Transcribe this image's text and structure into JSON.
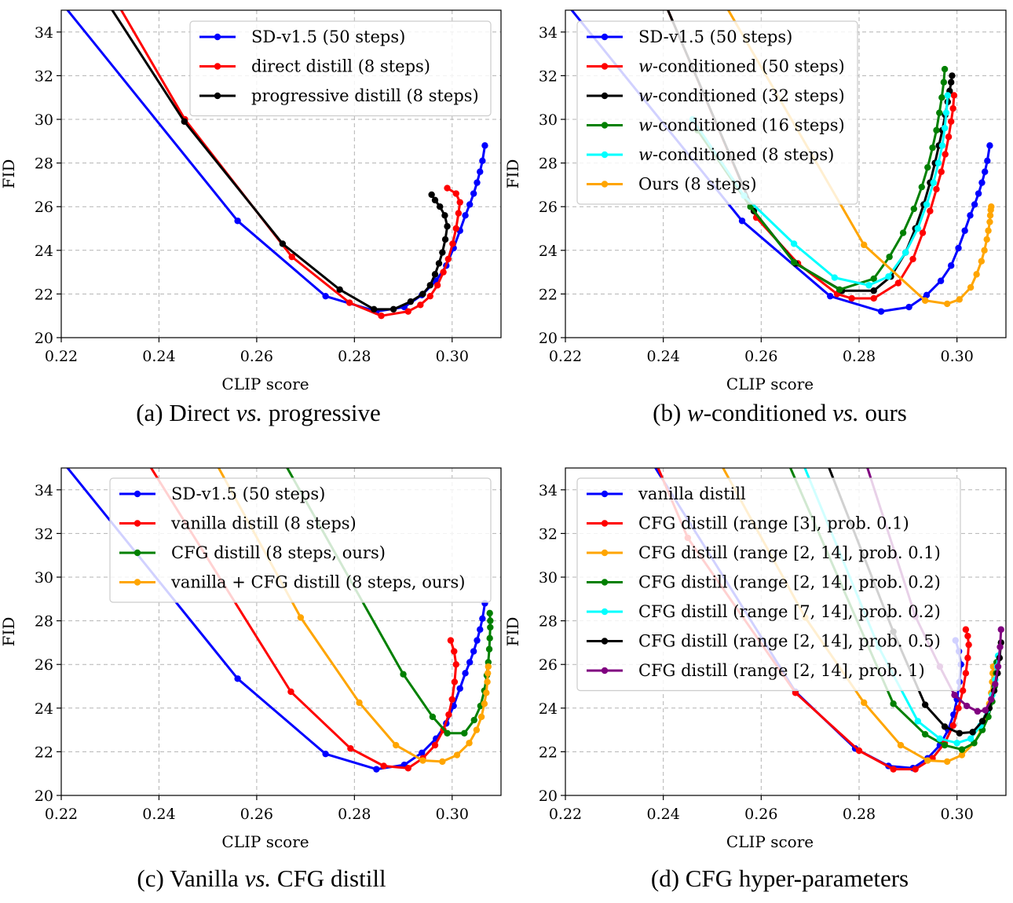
{
  "chart_data": [
    {
      "type": "line",
      "caption": {
        "prefix": "(a) Direct ",
        "em": "vs.",
        "suffix": " progressive"
      },
      "xlabel": "CLIP score",
      "ylabel": "FID",
      "xlim": [
        0.22,
        0.31
      ],
      "ylim": [
        20,
        35
      ],
      "xticks": [
        "0.22",
        "0.24",
        "0.26",
        "0.28",
        "0.30"
      ],
      "yticks": [
        "20",
        "22",
        "24",
        "26",
        "28",
        "30",
        "32",
        "34"
      ],
      "grid": true,
      "legend": "top-right",
      "series": [
        {
          "name": "SD-v1.5 (50 steps)",
          "color": "#0000ff",
          "x": [
            0.2195,
            0.2561,
            0.2741,
            0.2845,
            0.2902,
            0.2938,
            0.2967,
            0.2988,
            0.3003,
            0.3016,
            0.3027,
            0.3036,
            0.3044,
            0.3051,
            0.3057,
            0.3062,
            0.3067
          ],
          "y": [
            35.5,
            25.35,
            21.9,
            21.2,
            21.4,
            21.95,
            22.6,
            23.3,
            24.1,
            24.9,
            25.6,
            26.1,
            26.6,
            27.1,
            27.6,
            28.1,
            28.8
          ]
        },
        {
          "name": "direct distill (8 steps)",
          "color": "#ff0000",
          "x": [
            0.231,
            0.2453,
            0.2672,
            0.279,
            0.2855,
            0.291,
            0.2935,
            0.2955,
            0.297,
            0.2982,
            0.2992,
            0.3001,
            0.3008,
            0.3013,
            0.3016,
            0.3008,
            0.299
          ],
          "y": [
            35.5,
            30.0,
            23.7,
            21.6,
            21.0,
            21.2,
            21.5,
            21.9,
            22.4,
            23.0,
            23.6,
            24.3,
            25.0,
            25.7,
            26.2,
            26.6,
            26.85
          ]
        },
        {
          "name": "progressive distill (8 steps)",
          "color": "#000000",
          "x": [
            0.229,
            0.2452,
            0.2653,
            0.277,
            0.284,
            0.288,
            0.2915,
            0.294,
            0.2955,
            0.2965,
            0.2973,
            0.298,
            0.2986,
            0.299,
            0.2985,
            0.2975,
            0.2965,
            0.2958
          ],
          "y": [
            35.5,
            29.9,
            24.3,
            22.2,
            21.3,
            21.3,
            21.65,
            22.0,
            22.4,
            22.9,
            23.4,
            23.9,
            24.5,
            25.1,
            25.6,
            26.0,
            26.3,
            26.55
          ]
        }
      ]
    },
    {
      "type": "line",
      "caption": {
        "prefix": "(b) ",
        "em": "w",
        "mid": "-conditioned ",
        "em2": "vs.",
        "suffix": " ours"
      },
      "xlabel": "CLIP score",
      "ylabel": "FID",
      "xlim": [
        0.22,
        0.31
      ],
      "ylim": [
        20,
        35
      ],
      "xticks": [
        "0.22",
        "0.24",
        "0.26",
        "0.28",
        "0.30"
      ],
      "yticks": [
        "20",
        "22",
        "24",
        "26",
        "28",
        "30",
        "32",
        "34"
      ],
      "grid": true,
      "legend": "top-left",
      "series": [
        {
          "name": "SD-v1.5 (50 steps)",
          "color": "#0000ff",
          "x": [
            0.2195,
            0.2561,
            0.2741,
            0.2845,
            0.2902,
            0.2938,
            0.2967,
            0.2988,
            0.3003,
            0.3016,
            0.3027,
            0.3036,
            0.3044,
            0.3051,
            0.3057,
            0.3062,
            0.3067
          ],
          "y": [
            35.5,
            25.35,
            21.9,
            21.2,
            21.4,
            21.95,
            22.6,
            23.3,
            24.1,
            24.9,
            25.6,
            26.1,
            26.6,
            27.1,
            27.6,
            28.1,
            28.8
          ]
        },
        {
          "name": "w-conditioned (50 steps)",
          "label_prefix": "",
          "label_em": "w",
          "label_suffix": "-conditioned (50 steps)",
          "color": "#ff0000",
          "x": [
            0.24,
            0.259,
            0.2675,
            0.2755,
            0.2785,
            0.283,
            0.288,
            0.291,
            0.293,
            0.2945,
            0.2958,
            0.2968,
            0.2976,
            0.2983,
            0.2988,
            0.2992,
            0.2994
          ],
          "y": [
            35.5,
            25.5,
            23.4,
            22.0,
            21.8,
            21.8,
            22.5,
            23.6,
            24.8,
            25.8,
            26.8,
            27.6,
            28.4,
            29.2,
            29.9,
            30.5,
            31.1
          ]
        },
        {
          "name": "w-conditioned (32 steps)",
          "label_em": "w",
          "label_suffix": "-conditioned (32 steps)",
          "color": "#000000",
          "x": [
            0.24,
            0.2585,
            0.267,
            0.2765,
            0.283,
            0.2865,
            0.2895,
            0.2915,
            0.2932,
            0.2945,
            0.2955,
            0.2963,
            0.297,
            0.2976,
            0.2981,
            0.2985,
            0.2988,
            0.299
          ],
          "y": [
            35.5,
            25.8,
            23.4,
            22.15,
            22.15,
            22.8,
            23.9,
            25.0,
            26.1,
            27.1,
            28.0,
            28.8,
            29.5,
            30.2,
            30.8,
            31.3,
            31.7,
            32.0
          ]
        },
        {
          "name": "w-conditioned (16 steps)",
          "label_em": "w",
          "label_suffix": "-conditioned (16 steps)",
          "color": "#008000",
          "x": [
            0.247,
            0.2578,
            0.2667,
            0.276,
            0.283,
            0.2862,
            0.289,
            0.2912,
            0.2928,
            0.294,
            0.295,
            0.2958,
            0.2964,
            0.2969,
            0.2973,
            0.2975
          ],
          "y": [
            29.5,
            26.0,
            23.45,
            22.2,
            22.7,
            23.7,
            24.8,
            25.9,
            26.9,
            27.8,
            28.7,
            29.5,
            30.3,
            31.0,
            31.7,
            32.3
          ]
        },
        {
          "name": "w-conditioned (8 steps)",
          "label_em": "w",
          "label_suffix": "-conditioned (8 steps)",
          "color": "#00ffff",
          "x": [
            0.246,
            0.2565,
            0.2667,
            0.275,
            0.282,
            0.286,
            0.2895,
            0.292,
            0.2938,
            0.2952,
            0.2962,
            0.297,
            0.2975,
            0.2978,
            0.2981
          ],
          "y": [
            30.0,
            26.5,
            24.3,
            22.75,
            22.4,
            22.8,
            23.9,
            25.0,
            26.1,
            27.1,
            28.0,
            28.8,
            29.6,
            30.3,
            31.1
          ]
        },
        {
          "name": "Ours (8 steps)",
          "color": "#ffa500",
          "x": [
            0.252,
            0.281,
            0.2935,
            0.298,
            0.3005,
            0.3028,
            0.304,
            0.305,
            0.3056,
            0.3061,
            0.3064,
            0.3067,
            0.3068,
            0.3069,
            0.307
          ],
          "y": [
            35.5,
            24.25,
            21.7,
            21.55,
            21.75,
            22.3,
            22.9,
            23.5,
            24.0,
            24.5,
            24.9,
            25.3,
            25.6,
            25.85,
            26.0
          ]
        }
      ]
    },
    {
      "type": "line",
      "caption": {
        "prefix": "(c) Vanilla ",
        "em": "vs.",
        "suffix": " CFG distill"
      },
      "xlabel": "CLIP score",
      "ylabel": "FID",
      "xlim": [
        0.22,
        0.31
      ],
      "ylim": [
        20,
        35
      ],
      "xticks": [
        "0.22",
        "0.24",
        "0.26",
        "0.28",
        "0.30"
      ],
      "yticks": [
        "20",
        "22",
        "24",
        "26",
        "28",
        "30",
        "32",
        "34"
      ],
      "grid": true,
      "legend": "top-right",
      "series": [
        {
          "name": "SD-v1.5 (50 steps)",
          "color": "#0000ff",
          "x": [
            0.2195,
            0.2561,
            0.2741,
            0.2845,
            0.2902,
            0.2938,
            0.2967,
            0.2988,
            0.3003,
            0.3016,
            0.3027,
            0.3036,
            0.3044,
            0.3051,
            0.3057,
            0.3062,
            0.3067
          ],
          "y": [
            35.5,
            25.35,
            21.9,
            21.2,
            21.4,
            21.95,
            22.6,
            23.3,
            24.1,
            24.9,
            25.6,
            26.1,
            26.6,
            27.1,
            27.6,
            28.1,
            28.8
          ]
        },
        {
          "name": "vanilla distill (8 steps)",
          "color": "#ff0000",
          "x": [
            0.237,
            0.267,
            0.2792,
            0.286,
            0.291,
            0.294,
            0.2965,
            0.2982,
            0.2993,
            0.3,
            0.3005,
            0.3008,
            0.3004,
            0.2997
          ],
          "y": [
            35.5,
            24.75,
            22.15,
            21.35,
            21.25,
            21.7,
            22.3,
            23.0,
            23.7,
            24.4,
            25.2,
            26.0,
            26.6,
            27.1
          ]
        },
        {
          "name": "CFG distill (8 steps, ours)",
          "color": "#008000",
          "x": [
            0.265,
            0.29,
            0.296,
            0.299,
            0.3025,
            0.3045,
            0.3058,
            0.3066,
            0.3071,
            0.3074,
            0.3076,
            0.3077,
            0.3078,
            0.3078,
            0.3077
          ],
          "y": [
            35.5,
            25.55,
            23.6,
            22.85,
            22.85,
            23.45,
            24.1,
            24.8,
            25.5,
            26.1,
            26.7,
            27.2,
            27.7,
            28.0,
            28.35
          ]
        },
        {
          "name": "vanilla + CFG distill (8 steps, ours)",
          "color": "#ffa500",
          "x": [
            0.251,
            0.269,
            0.281,
            0.2885,
            0.294,
            0.298,
            0.301,
            0.3035,
            0.305,
            0.306,
            0.3066,
            0.307,
            0.3072,
            0.3073,
            0.3074
          ],
          "y": [
            35.5,
            28.15,
            24.25,
            22.3,
            21.6,
            21.55,
            21.85,
            22.4,
            23.0,
            23.6,
            24.2,
            24.7,
            25.2,
            25.6,
            25.9
          ]
        }
      ]
    },
    {
      "type": "line",
      "caption": {
        "prefix": "(d) CFG hyper-parameters",
        "em": "",
        "suffix": ""
      },
      "xlabel": "CLIP score",
      "ylabel": "FID",
      "xlim": [
        0.22,
        0.31
      ],
      "ylim": [
        20,
        35
      ],
      "xticks": [
        "0.22",
        "0.24",
        "0.26",
        "0.28",
        "0.30"
      ],
      "yticks": [
        "20",
        "22",
        "24",
        "26",
        "28",
        "30",
        "32",
        "34"
      ],
      "grid": true,
      "legend": "top-left",
      "series": [
        {
          "name": "vanilla distill",
          "color": "#0000ff",
          "x": [
            0.237,
            0.267,
            0.2792,
            0.286,
            0.291,
            0.294,
            0.2965,
            0.2982,
            0.2993,
            0.3,
            0.3005,
            0.3008,
            0.3004,
            0.2997
          ],
          "y": [
            35.5,
            24.75,
            22.15,
            21.35,
            21.25,
            21.7,
            22.3,
            23.0,
            23.7,
            24.4,
            25.2,
            26.0,
            26.6,
            27.1
          ]
        },
        {
          "name": "CFG distill (range [3], prob. 0.1)",
          "color": "#ff0000",
          "x": [
            0.238,
            0.245,
            0.267,
            0.28,
            0.287,
            0.2915,
            0.295,
            0.2975,
            0.2992,
            0.3003,
            0.3012,
            0.3018,
            0.3022,
            0.3024,
            0.3022,
            0.3018
          ],
          "y": [
            35.5,
            31.8,
            24.7,
            22.05,
            21.2,
            21.2,
            21.7,
            22.4,
            23.2,
            24.0,
            24.8,
            25.6,
            26.3,
            26.9,
            27.3,
            27.6
          ]
        },
        {
          "name": "CFG distill (range [2, 14], prob. 0.1)",
          "color": "#ffa500",
          "x": [
            0.251,
            0.269,
            0.281,
            0.2885,
            0.294,
            0.298,
            0.301,
            0.3035,
            0.305,
            0.306,
            0.3066,
            0.307,
            0.3072,
            0.3073,
            0.3074
          ],
          "y": [
            35.5,
            28.15,
            24.25,
            22.3,
            21.6,
            21.55,
            21.85,
            22.4,
            23.0,
            23.6,
            24.2,
            24.7,
            25.2,
            25.6,
            25.9
          ]
        },
        {
          "name": "CFG distill (range [2, 14], prob. 0.2)",
          "color": "#008000",
          "x": [
            0.265,
            0.287,
            0.2935,
            0.2975,
            0.301,
            0.3035,
            0.3052,
            0.3064,
            0.3072,
            0.3077,
            0.308,
            0.3081
          ],
          "y": [
            35.5,
            24.2,
            22.8,
            22.3,
            22.1,
            22.4,
            23.0,
            23.6,
            24.3,
            25.0,
            25.6,
            26.1
          ]
        },
        {
          "name": "CFG distill (range [7, 14], prob. 0.2)",
          "color": "#00ffff",
          "x": [
            0.268,
            0.284,
            0.292,
            0.2965,
            0.3,
            0.3028,
            0.3048,
            0.3062,
            0.3072,
            0.3078,
            0.3082,
            0.3084
          ],
          "y": [
            35.5,
            26.8,
            23.4,
            22.6,
            22.4,
            22.6,
            23.2,
            23.9,
            24.6,
            25.3,
            25.9,
            26.4
          ]
        },
        {
          "name": "CFG distill (range [2, 14], prob. 0.5)",
          "color": "#000000",
          "x": [
            0.273,
            0.287,
            0.2935,
            0.2975,
            0.3005,
            0.3032,
            0.3052,
            0.3066,
            0.3076,
            0.3083,
            0.3087,
            0.309
          ],
          "y": [
            35.5,
            27.5,
            24.15,
            23.15,
            22.85,
            22.9,
            23.4,
            24.0,
            24.8,
            25.6,
            26.3,
            27.0
          ]
        },
        {
          "name": "CFG distill (range [2, 14], prob. 1)",
          "color": "#800080",
          "x": [
            0.281,
            0.2915,
            0.2965,
            0.2995,
            0.302,
            0.3042,
            0.3058,
            0.307,
            0.3078,
            0.3084,
            0.3088,
            0.309
          ],
          "y": [
            35.5,
            28.2,
            25.9,
            24.6,
            24.1,
            23.85,
            23.9,
            24.4,
            25.1,
            25.9,
            26.8,
            27.6
          ]
        }
      ]
    }
  ]
}
